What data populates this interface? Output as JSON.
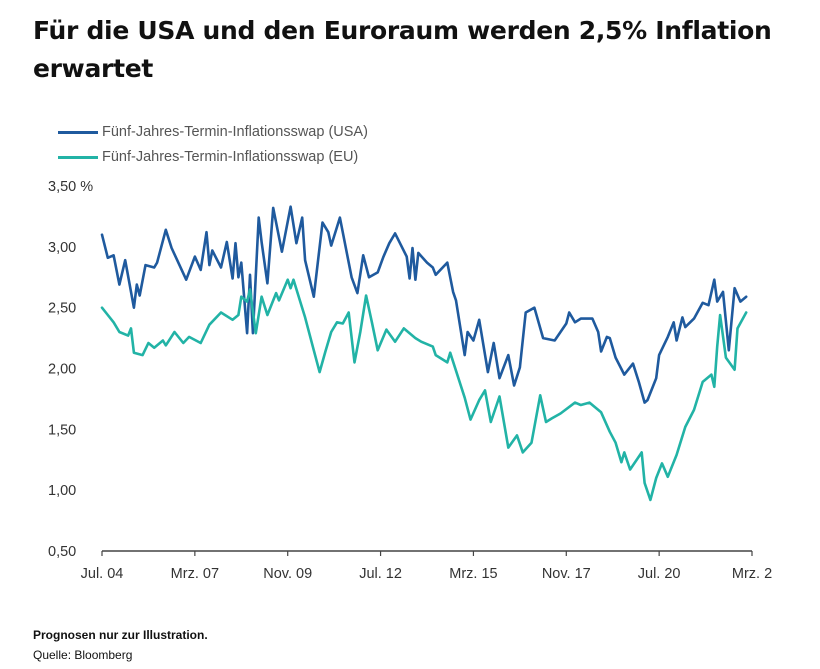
{
  "header": {
    "title": "Für die USA und den Euroraum werden 2,5% Inflation erwartet"
  },
  "footer": {
    "note": "Prognosen nur zur Illustration.",
    "source": "Quelle: Bloomberg"
  },
  "chart_data": {
    "type": "line",
    "title": "",
    "ylabel": "%",
    "ylim": [
      0.5,
      3.5
    ],
    "yticks": [
      "0,50",
      "1,00",
      "1,50",
      "2,00",
      "2,50",
      "3,00",
      "3,50 %"
    ],
    "ytick_values": [
      0.5,
      1.0,
      1.5,
      2.0,
      2.5,
      3.0,
      3.5
    ],
    "xlim": [
      "2004-07",
      "2023-03"
    ],
    "xticks": [
      "Jul. 04",
      "Mrz. 07",
      "Nov. 09",
      "Jul. 12",
      "Mrz. 15",
      "Nov. 17",
      "Jul. 20",
      "Mrz. 2"
    ],
    "xtick_dates": [
      "2004-07",
      "2007-03",
      "2009-11",
      "2012-07",
      "2015-03",
      "2017-11",
      "2020-07",
      "2023-03"
    ],
    "grid": false,
    "legend": "top-left",
    "series": [
      {
        "name": "Fünf-Jahres-Termin-Inflationsswap (USA)",
        "color": "#1f5a9e",
        "x": [
          "2004-07",
          "2004-09",
          "2004-11",
          "2005-01",
          "2005-03",
          "2005-06",
          "2005-07",
          "2005-08",
          "2005-10",
          "2006-01",
          "2006-02",
          "2006-05",
          "2006-07",
          "2006-12",
          "2007-03",
          "2007-05",
          "2007-07",
          "2007-08",
          "2007-09",
          "2007-12",
          "2008-02",
          "2008-04",
          "2008-05",
          "2008-06",
          "2008-07",
          "2008-09",
          "2008-10",
          "2008-11",
          "2009-01",
          "2009-02",
          "2009-04",
          "2009-06",
          "2009-09",
          "2009-12",
          "2010-02",
          "2010-04",
          "2010-05",
          "2010-08",
          "2010-11",
          "2011-01",
          "2011-02",
          "2011-05",
          "2011-09",
          "2011-11",
          "2012-01",
          "2012-03",
          "2012-06",
          "2012-08",
          "2012-10",
          "2012-12",
          "2013-04",
          "2013-05",
          "2013-06",
          "2013-07",
          "2013-08",
          "2013-11",
          "2014-01",
          "2014-02",
          "2014-06",
          "2014-08",
          "2014-09",
          "2014-12",
          "2015-01",
          "2015-03",
          "2015-05",
          "2015-08",
          "2015-10",
          "2015-12",
          "2016-03",
          "2016-05",
          "2016-07",
          "2016-09",
          "2016-12",
          "2017-03",
          "2017-07",
          "2017-11",
          "2017-12",
          "2018-02",
          "2018-04",
          "2018-08",
          "2018-10",
          "2018-11",
          "2019-01",
          "2019-02",
          "2019-04",
          "2019-07",
          "2019-10",
          "2019-12",
          "2020-02",
          "2020-03",
          "2020-06",
          "2020-07",
          "2020-10",
          "2020-12",
          "2021-01",
          "2021-03",
          "2021-04",
          "2021-07",
          "2021-10",
          "2021-12",
          "2022-02",
          "2022-03",
          "2022-05",
          "2022-07",
          "2022-09",
          "2022-11",
          "2023-01"
        ],
        "y": [
          3.1,
          2.91,
          2.93,
          2.69,
          2.89,
          2.5,
          2.69,
          2.6,
          2.85,
          2.83,
          2.87,
          3.14,
          2.99,
          2.73,
          2.92,
          2.81,
          3.12,
          2.85,
          2.97,
          2.83,
          3.04,
          2.74,
          3.03,
          2.75,
          2.87,
          2.29,
          2.77,
          2.29,
          3.24,
          3.04,
          2.7,
          3.32,
          2.96,
          3.33,
          3.03,
          3.24,
          2.89,
          2.59,
          3.2,
          3.12,
          3.01,
          3.24,
          2.75,
          2.62,
          2.93,
          2.75,
          2.79,
          2.92,
          3.03,
          3.11,
          2.92,
          2.74,
          2.99,
          2.73,
          2.95,
          2.87,
          2.83,
          2.77,
          2.87,
          2.63,
          2.56,
          2.11,
          2.3,
          2.23,
          2.4,
          1.97,
          2.21,
          1.92,
          2.11,
          1.86,
          2.01,
          2.46,
          2.5,
          2.25,
          2.23,
          2.37,
          2.46,
          2.38,
          2.41,
          2.41,
          2.3,
          2.14,
          2.26,
          2.25,
          2.09,
          1.95,
          2.04,
          1.89,
          1.72,
          1.74,
          1.92,
          2.11,
          2.26,
          2.38,
          2.23,
          2.42,
          2.34,
          2.41,
          2.54,
          2.52,
          2.73,
          2.55,
          2.63,
          2.15,
          2.66,
          2.55,
          2.59
        ]
      },
      {
        "name": "Fünf-Jahres-Termin-Inflationsswap (EU)",
        "color": "#22b3a6",
        "x": [
          "2004-07",
          "2004-09",
          "2004-11",
          "2005-01",
          "2005-04",
          "2005-05",
          "2005-06",
          "2005-09",
          "2005-11",
          "2006-01",
          "2006-04",
          "2006-05",
          "2006-08",
          "2006-11",
          "2007-01",
          "2007-05",
          "2007-08",
          "2007-12",
          "2008-04",
          "2008-06",
          "2008-07",
          "2008-09",
          "2008-10",
          "2008-12",
          "2009-02",
          "2009-04",
          "2009-07",
          "2009-08",
          "2009-11",
          "2009-12",
          "2010-01",
          "2010-05",
          "2010-08",
          "2010-10",
          "2010-12",
          "2011-02",
          "2011-04",
          "2011-06",
          "2011-08",
          "2011-10",
          "2011-12",
          "2012-02",
          "2012-04",
          "2012-06",
          "2012-09",
          "2012-12",
          "2013-03",
          "2013-07",
          "2013-09",
          "2014-01",
          "2014-02",
          "2014-06",
          "2014-07",
          "2014-12",
          "2015-02",
          "2015-05",
          "2015-07",
          "2015-09",
          "2015-12",
          "2016-03",
          "2016-06",
          "2016-08",
          "2016-11",
          "2017-02",
          "2017-04",
          "2017-06",
          "2017-09",
          "2018-02",
          "2018-04",
          "2018-07",
          "2018-11",
          "2019-02",
          "2019-04",
          "2019-06",
          "2019-07",
          "2019-09",
          "2020-01",
          "2020-02",
          "2020-04",
          "2020-06",
          "2020-08",
          "2020-10",
          "2021-01",
          "2021-04",
          "2021-07",
          "2021-10",
          "2022-01",
          "2022-02",
          "2022-03",
          "2022-04",
          "2022-06",
          "2022-09",
          "2022-10",
          "2023-01"
        ],
        "y": [
          2.5,
          2.44,
          2.38,
          2.3,
          2.27,
          2.33,
          2.13,
          2.11,
          2.21,
          2.17,
          2.23,
          2.19,
          2.3,
          2.21,
          2.26,
          2.21,
          2.36,
          2.46,
          2.4,
          2.44,
          2.59,
          2.55,
          2.65,
          2.29,
          2.59,
          2.44,
          2.62,
          2.56,
          2.73,
          2.66,
          2.73,
          2.42,
          2.15,
          1.97,
          2.14,
          2.3,
          2.38,
          2.37,
          2.46,
          2.05,
          2.3,
          2.6,
          2.38,
          2.15,
          2.32,
          2.22,
          2.33,
          2.25,
          2.22,
          2.18,
          2.11,
          2.05,
          2.13,
          1.76,
          1.58,
          1.74,
          1.82,
          1.56,
          1.77,
          1.35,
          1.45,
          1.31,
          1.39,
          1.78,
          1.56,
          1.59,
          1.63,
          1.72,
          1.7,
          1.72,
          1.64,
          1.48,
          1.39,
          1.23,
          1.31,
          1.17,
          1.31,
          1.06,
          0.92,
          1.1,
          1.22,
          1.11,
          1.29,
          1.52,
          1.66,
          1.89,
          1.95,
          1.85,
          2.18,
          2.44,
          2.09,
          1.99,
          2.33,
          2.46
        ]
      }
    ]
  }
}
